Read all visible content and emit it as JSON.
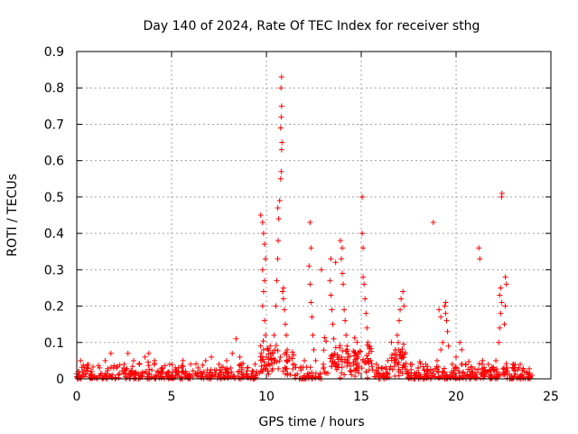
{
  "chart_data": {
    "type": "scatter",
    "title": "Day 140 of 2024, Rate Of TEC Index for receiver sthg",
    "xlabel": "GPS time / hours",
    "ylabel": "ROTI / TECUs",
    "xlim": [
      0,
      25
    ],
    "ylim": [
      0,
      0.9
    ],
    "xticks": [
      0,
      5,
      10,
      15,
      20,
      25
    ],
    "xtick_labels": [
      "0",
      "5",
      "10",
      "15",
      "20",
      "25"
    ],
    "yticks": [
      0,
      0.1,
      0.2,
      0.3,
      0.4,
      0.5,
      0.6,
      0.7,
      0.8,
      0.9
    ],
    "ytick_labels": [
      "0",
      "0.1",
      "0.2",
      "0.3",
      "0.4",
      "0.5",
      "0.6",
      "0.7",
      "0.8",
      "0.9"
    ],
    "grid": true,
    "marker": "+",
    "series": [
      {
        "name": "ROTI",
        "color": "#ff0000",
        "points": [
          [
            0.1,
            0.02
          ],
          [
            0.2,
            0.05
          ],
          [
            0.4,
            0.03
          ],
          [
            0.6,
            0.04
          ],
          [
            0.8,
            0.02
          ],
          [
            1.2,
            0.03
          ],
          [
            1.5,
            0.05
          ],
          [
            1.8,
            0.07
          ],
          [
            2.1,
            0.03
          ],
          [
            2.5,
            0.04
          ],
          [
            2.7,
            0.07
          ],
          [
            3.0,
            0.05
          ],
          [
            3.3,
            0.04
          ],
          [
            3.6,
            0.06
          ],
          [
            3.8,
            0.07
          ],
          [
            4.1,
            0.05
          ],
          [
            4.5,
            0.03
          ],
          [
            4.9,
            0.04
          ],
          [
            5.2,
            0.03
          ],
          [
            5.6,
            0.05
          ],
          [
            6.0,
            0.04
          ],
          [
            6.4,
            0.03
          ],
          [
            6.8,
            0.05
          ],
          [
            7.1,
            0.06
          ],
          [
            7.5,
            0.04
          ],
          [
            7.9,
            0.05
          ],
          [
            8.2,
            0.07
          ],
          [
            8.4,
            0.11
          ],
          [
            8.6,
            0.06
          ],
          [
            9.0,
            0.03
          ],
          [
            9.4,
            0.04
          ],
          [
            9.7,
            0.45
          ],
          [
            9.8,
            0.43
          ],
          [
            9.85,
            0.4
          ],
          [
            9.9,
            0.37
          ],
          [
            9.95,
            0.33
          ],
          [
            9.8,
            0.3
          ],
          [
            9.9,
            0.27
          ],
          [
            9.85,
            0.24
          ],
          [
            9.8,
            0.2
          ],
          [
            9.9,
            0.16
          ],
          [
            9.95,
            0.12
          ],
          [
            9.85,
            0.08
          ],
          [
            10.0,
            0.06
          ],
          [
            10.1,
            0.04
          ],
          [
            10.2,
            0.09
          ],
          [
            10.4,
            0.12
          ],
          [
            10.5,
            0.2
          ],
          [
            10.55,
            0.27
          ],
          [
            10.6,
            0.33
          ],
          [
            10.62,
            0.38
          ],
          [
            10.65,
            0.44
          ],
          [
            10.6,
            0.47
          ],
          [
            10.7,
            0.49
          ],
          [
            10.75,
            0.55
          ],
          [
            10.78,
            0.57
          ],
          [
            10.8,
            0.63
          ],
          [
            10.82,
            0.65
          ],
          [
            10.75,
            0.69
          ],
          [
            10.78,
            0.72
          ],
          [
            10.8,
            0.75
          ],
          [
            10.77,
            0.8
          ],
          [
            10.8,
            0.83
          ],
          [
            10.85,
            0.24
          ],
          [
            10.9,
            0.22
          ],
          [
            10.95,
            0.19
          ],
          [
            11.0,
            0.15
          ],
          [
            10.9,
            0.25
          ],
          [
            11.05,
            0.12
          ],
          [
            11.1,
            0.08
          ],
          [
            11.2,
            0.06
          ],
          [
            11.4,
            0.04
          ],
          [
            12.0,
            0.05
          ],
          [
            12.3,
            0.43
          ],
          [
            12.35,
            0.36
          ],
          [
            12.25,
            0.31
          ],
          [
            12.3,
            0.26
          ],
          [
            12.35,
            0.21
          ],
          [
            12.4,
            0.17
          ],
          [
            12.45,
            0.12
          ],
          [
            12.5,
            0.08
          ],
          [
            12.6,
            0.05
          ],
          [
            12.9,
            0.3
          ],
          [
            13.0,
            0.04
          ],
          [
            13.4,
            0.33
          ],
          [
            13.35,
            0.27
          ],
          [
            13.4,
            0.23
          ],
          [
            13.45,
            0.19
          ],
          [
            13.5,
            0.15
          ],
          [
            13.55,
            0.11
          ],
          [
            13.6,
            0.07
          ],
          [
            13.65,
            0.32
          ],
          [
            13.9,
            0.38
          ],
          [
            14.0,
            0.36
          ],
          [
            13.95,
            0.33
          ],
          [
            14.0,
            0.29
          ],
          [
            14.05,
            0.26
          ],
          [
            14.1,
            0.19
          ],
          [
            14.15,
            0.16
          ],
          [
            14.2,
            0.12
          ],
          [
            14.25,
            0.09
          ],
          [
            14.3,
            0.06
          ],
          [
            14.6,
            0.04
          ],
          [
            14.8,
            0.03
          ],
          [
            15.05,
            0.5
          ],
          [
            15.05,
            0.4
          ],
          [
            15.1,
            0.36
          ],
          [
            15.1,
            0.28
          ],
          [
            15.15,
            0.26
          ],
          [
            15.2,
            0.22
          ],
          [
            15.25,
            0.18
          ],
          [
            15.3,
            0.14
          ],
          [
            15.35,
            0.1
          ],
          [
            15.4,
            0.07
          ],
          [
            15.5,
            0.05
          ],
          [
            15.8,
            0.04
          ],
          [
            16.1,
            0.03
          ],
          [
            16.4,
            0.05
          ],
          [
            16.8,
            0.08
          ],
          [
            16.9,
            0.12
          ],
          [
            17.0,
            0.16
          ],
          [
            17.05,
            0.19
          ],
          [
            17.1,
            0.22
          ],
          [
            17.2,
            0.24
          ],
          [
            17.25,
            0.2
          ],
          [
            16.95,
            0.1
          ],
          [
            17.1,
            0.06
          ],
          [
            17.6,
            0.04
          ],
          [
            18.0,
            0.03
          ],
          [
            18.4,
            0.04
          ],
          [
            18.8,
            0.43
          ],
          [
            19.0,
            0.05
          ],
          [
            19.1,
            0.19
          ],
          [
            19.2,
            0.17
          ],
          [
            19.4,
            0.2
          ],
          [
            19.45,
            0.18
          ],
          [
            19.5,
            0.16
          ],
          [
            19.55,
            0.13
          ],
          [
            19.45,
            0.21
          ],
          [
            19.6,
            0.09
          ],
          [
            19.3,
            0.1
          ],
          [
            19.2,
            0.08
          ],
          [
            19.8,
            0.04
          ],
          [
            20.0,
            0.06
          ],
          [
            20.2,
            0.1
          ],
          [
            20.3,
            0.08
          ],
          [
            20.5,
            0.04
          ],
          [
            20.8,
            0.03
          ],
          [
            21.2,
            0.36
          ],
          [
            21.25,
            0.33
          ],
          [
            21.4,
            0.05
          ],
          [
            21.7,
            0.04
          ],
          [
            22.1,
            0.05
          ],
          [
            22.25,
            0.1
          ],
          [
            22.3,
            0.14
          ],
          [
            22.35,
            0.18
          ],
          [
            22.4,
            0.21
          ],
          [
            22.3,
            0.23
          ],
          [
            22.35,
            0.25
          ],
          [
            22.4,
            0.5
          ],
          [
            22.42,
            0.51
          ],
          [
            22.6,
            0.28
          ],
          [
            22.65,
            0.26
          ],
          [
            22.6,
            0.2
          ],
          [
            22.55,
            0.15
          ],
          [
            22.7,
            0.03
          ],
          [
            23.0,
            0.04
          ],
          [
            23.3,
            0.03
          ],
          [
            23.6,
            0.02
          ],
          [
            24.0,
            0.01
          ]
        ]
      }
    ]
  }
}
